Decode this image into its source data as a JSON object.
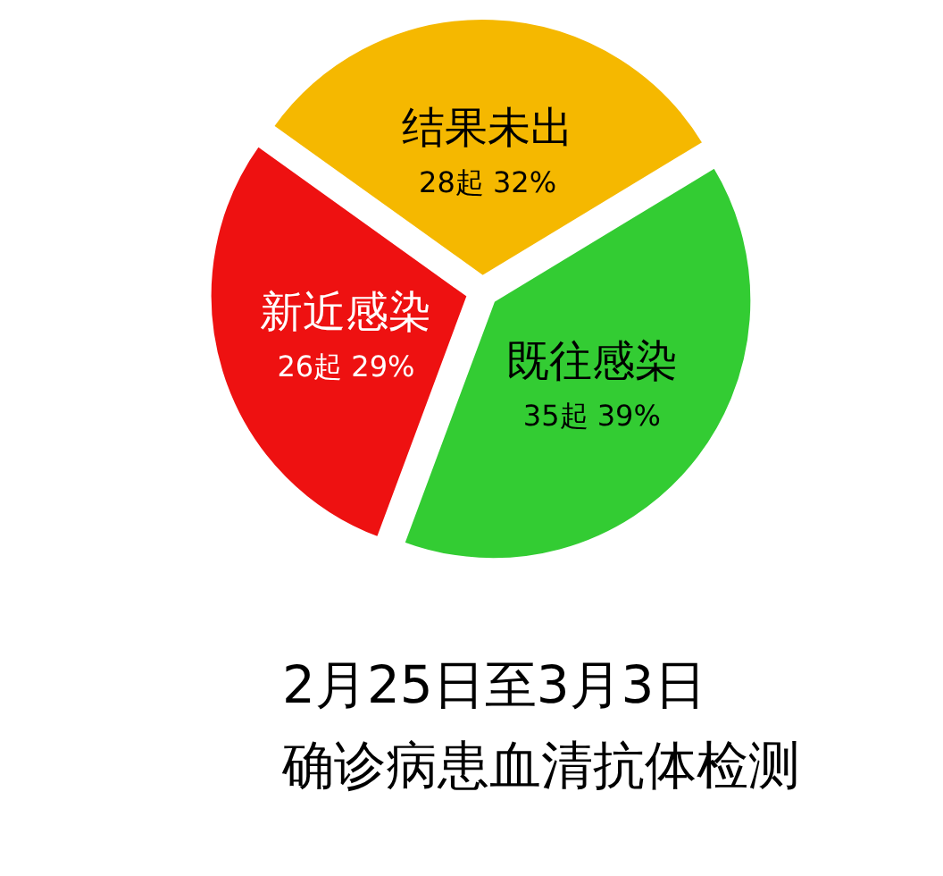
{
  "chart_data": {
    "type": "pie",
    "title": "2月25日至3月3日",
    "subtitle": "确诊病患血清抗体检测",
    "categories": [
      "结果未出",
      "既往感染",
      "新近感染"
    ],
    "values": [
      28,
      35,
      26
    ],
    "value_labels": [
      "28起 32%",
      "35起 39%",
      "26起 29%"
    ],
    "colors": [
      "#f5b800",
      "#33cc33",
      "#ee1111"
    ]
  }
}
